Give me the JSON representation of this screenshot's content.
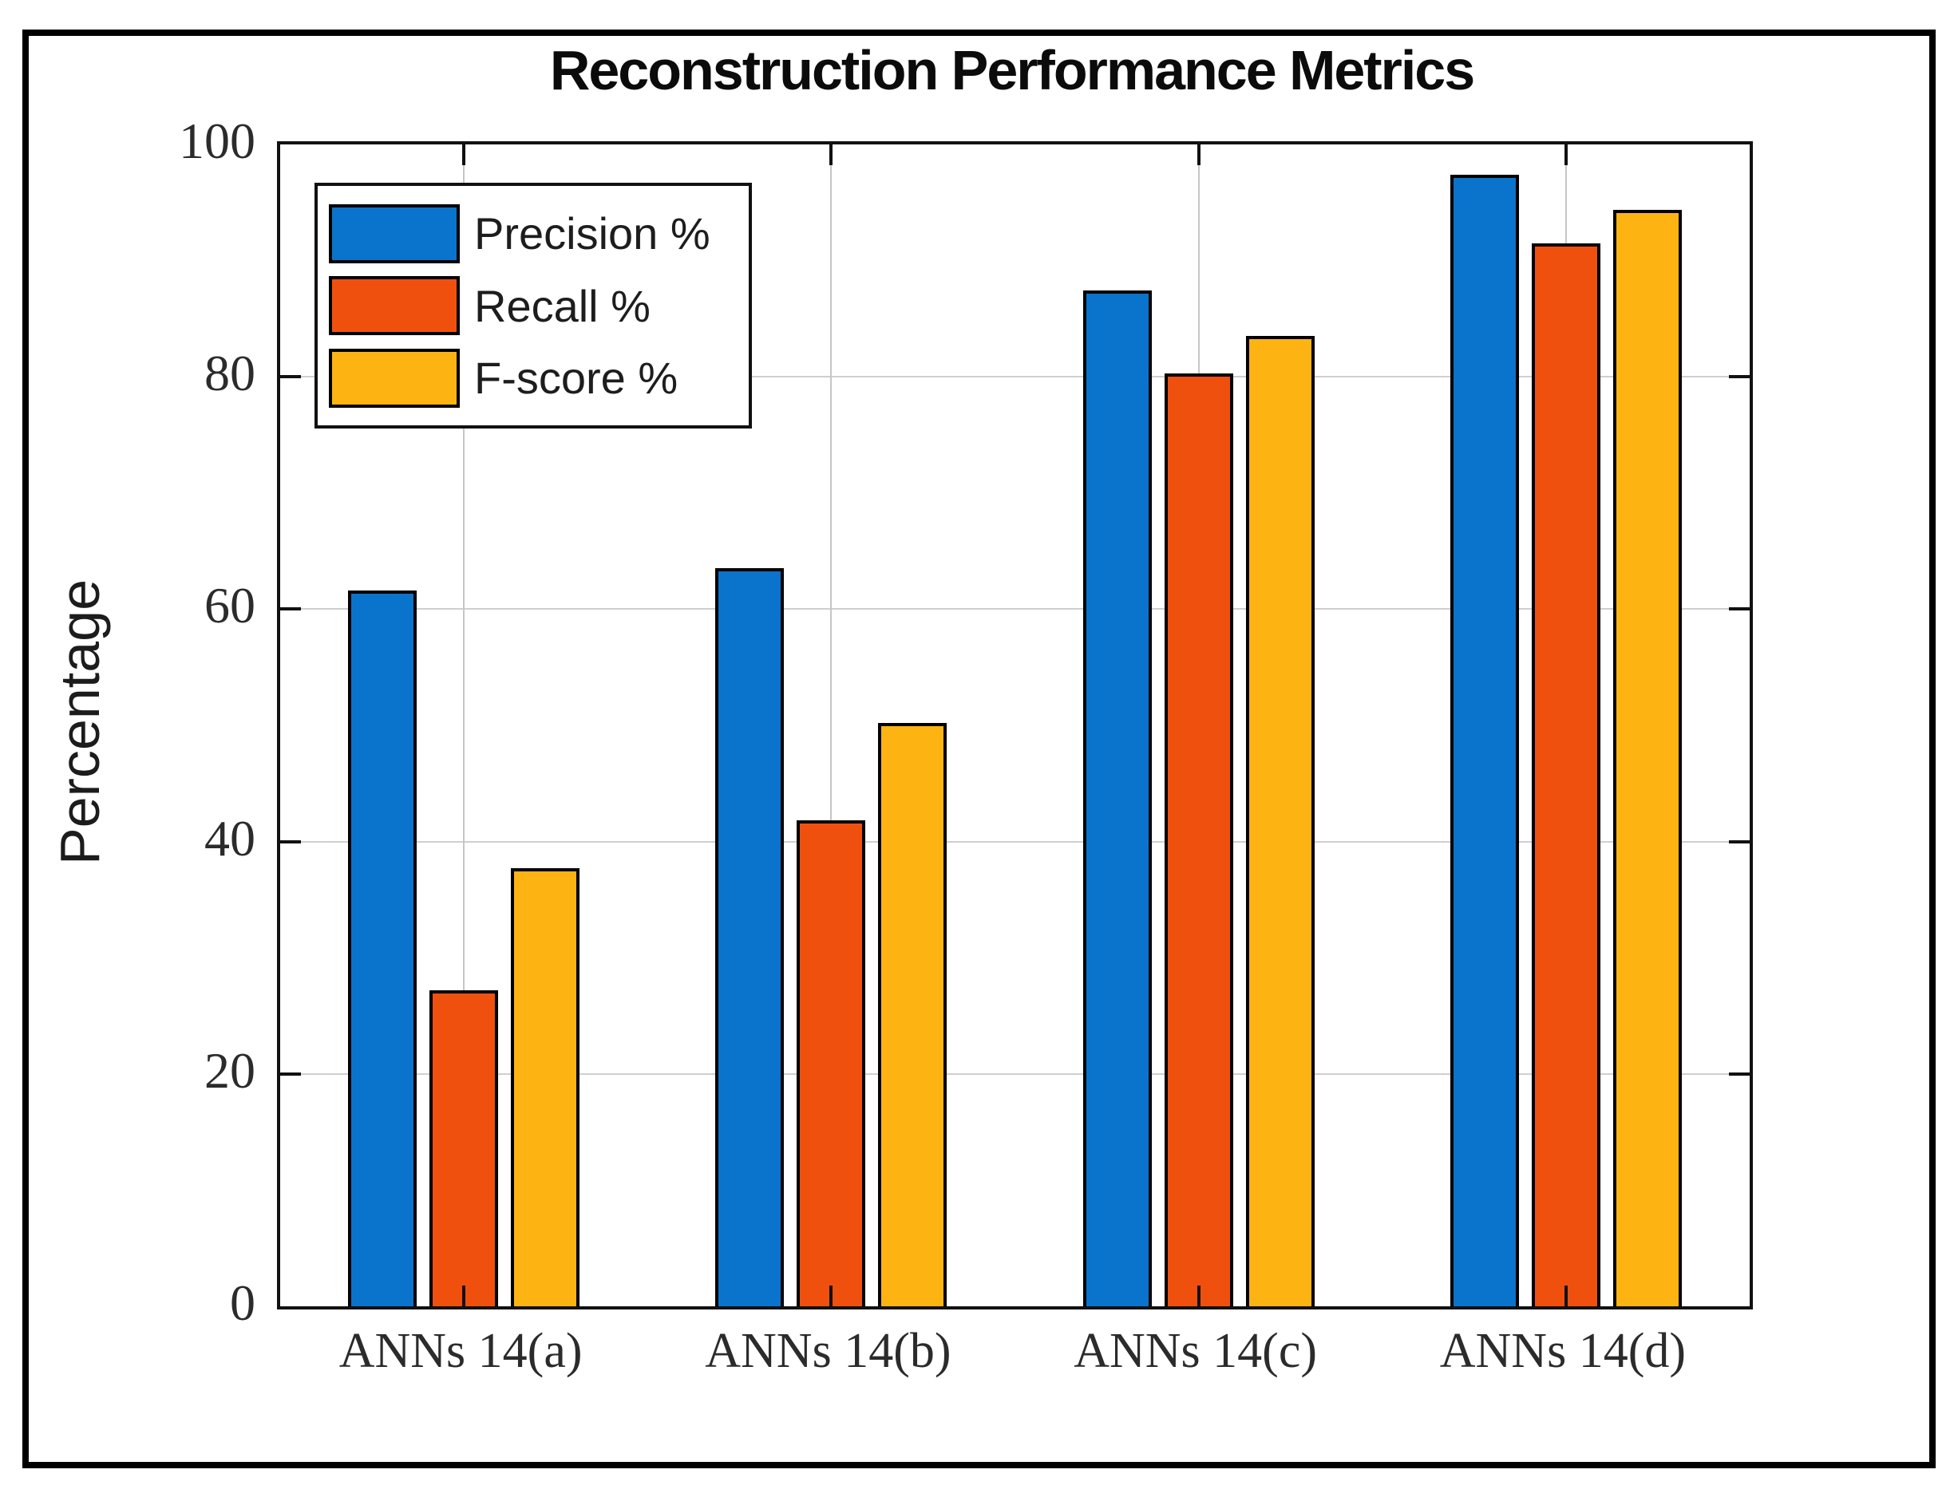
{
  "figure": {
    "background": "#ffffff",
    "outer_border_color": "#000000",
    "axis_color": "#111111",
    "grid_color": "#cfcfcf",
    "tick_label_color": "#2b2b2b"
  },
  "chart_data": {
    "type": "bar",
    "title": "Reconstruction Performance Metrics",
    "xlabel": "",
    "ylabel": "Percentage",
    "categories": [
      "ANNs 14(a)",
      "ANNs 14(b)",
      "ANNs 14(c)",
      "ANNs 14(d)"
    ],
    "series": [
      {
        "name": "Precision %",
        "color": "#0a74cc",
        "values": [
          61.6,
          63.5,
          87.4,
          97.4
        ]
      },
      {
        "name": "Recall %",
        "color": "#f0500e",
        "values": [
          27.2,
          41.8,
          80.3,
          91.5
        ]
      },
      {
        "name": "F-score %",
        "color": "#fdb412",
        "values": [
          37.7,
          50.2,
          83.5,
          94.4
        ]
      }
    ],
    "ylim": [
      0,
      100
    ],
    "yticks": [
      0,
      20,
      40,
      60,
      80,
      100
    ],
    "grid": true,
    "legend_position": "top-left",
    "legend_entries": [
      "Precision %",
      "Recall %",
      "F-score %"
    ]
  }
}
